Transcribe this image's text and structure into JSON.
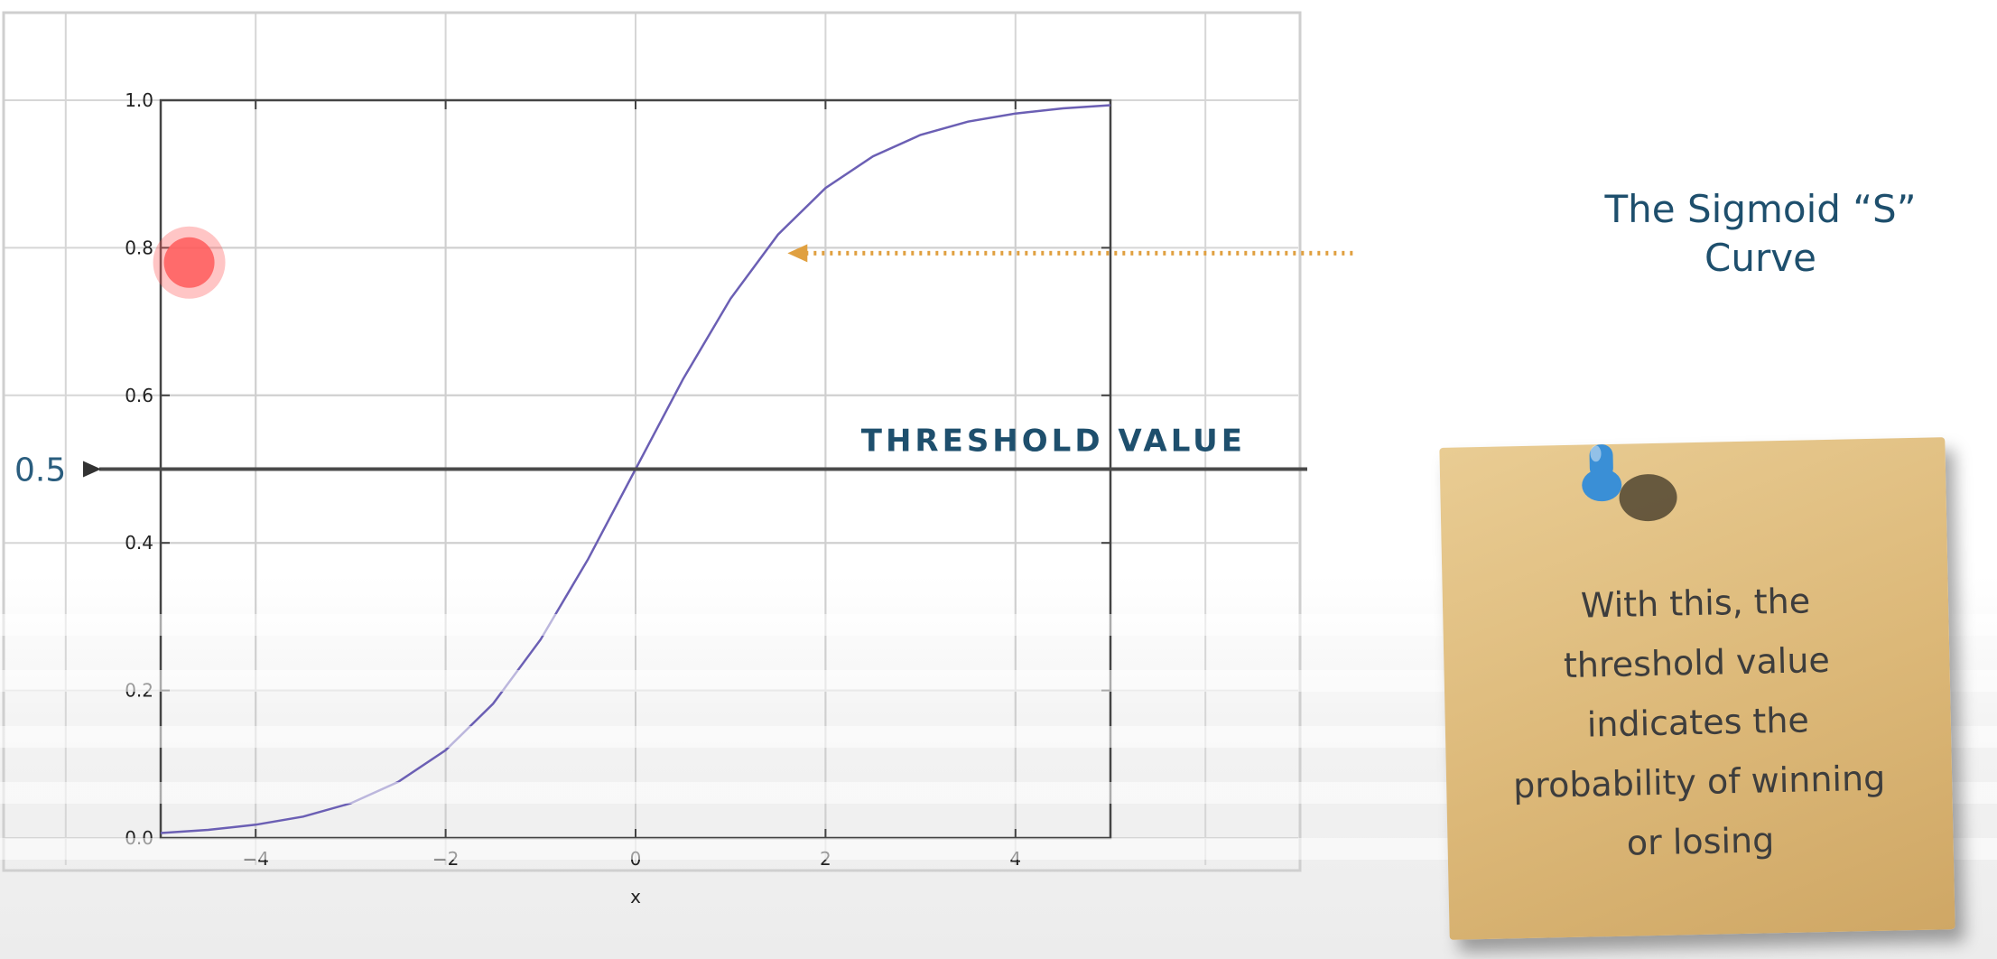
{
  "chart_data": {
    "type": "line",
    "xlabel": "x",
    "ylabel": "",
    "xlim": [
      -5,
      5
    ],
    "ylim": [
      0.0,
      1.0
    ],
    "x_ticks": [
      -4,
      -2,
      0,
      2,
      4
    ],
    "x_tick_labels": [
      "−4",
      "−2",
      "0",
      "2",
      "4"
    ],
    "y_ticks": [
      0.0,
      0.2,
      0.4,
      0.6,
      0.8,
      1.0
    ],
    "y_tick_labels": [
      "0.0",
      "0.2",
      "0.4",
      "0.6",
      "0.8",
      "1.0"
    ],
    "grid": true,
    "series": [
      {
        "x": [
          -5,
          -4.5,
          -4,
          -3.5,
          -3,
          -2.5,
          -2,
          -1.5,
          -1,
          -0.5,
          0,
          0.5,
          1,
          1.5,
          2,
          2.5,
          3,
          3.5,
          4,
          4.5,
          5
        ],
        "values": [
          0.0067,
          0.011,
          0.018,
          0.029,
          0.047,
          0.076,
          0.119,
          0.182,
          0.269,
          0.378,
          0.5,
          0.622,
          0.731,
          0.818,
          0.881,
          0.924,
          0.953,
          0.971,
          0.982,
          0.989,
          0.9933
        ],
        "color": "#6b5fb4"
      }
    ],
    "threshold": {
      "y": 0.5,
      "label": "THRESHOLD   VALUE",
      "marker_label": "0.5",
      "color": "#4a4a4a"
    },
    "pointer_arrow": {
      "target_x": 1.6,
      "target_y": 0.8,
      "color": "#e0a040",
      "style": "dotted"
    },
    "red_dot": {
      "x": -4.7,
      "y": 0.78,
      "color": "#ff5a5a"
    }
  },
  "callout": {
    "line1": "The Sigmoid “S”",
    "line2": "Curve"
  },
  "note": {
    "lines": [
      "With this, the",
      "threshold value",
      "indicates the",
      "probability of winning",
      "or losing"
    ],
    "paper_color": "#dcb878",
    "pin_color": "#3a8fd6"
  }
}
